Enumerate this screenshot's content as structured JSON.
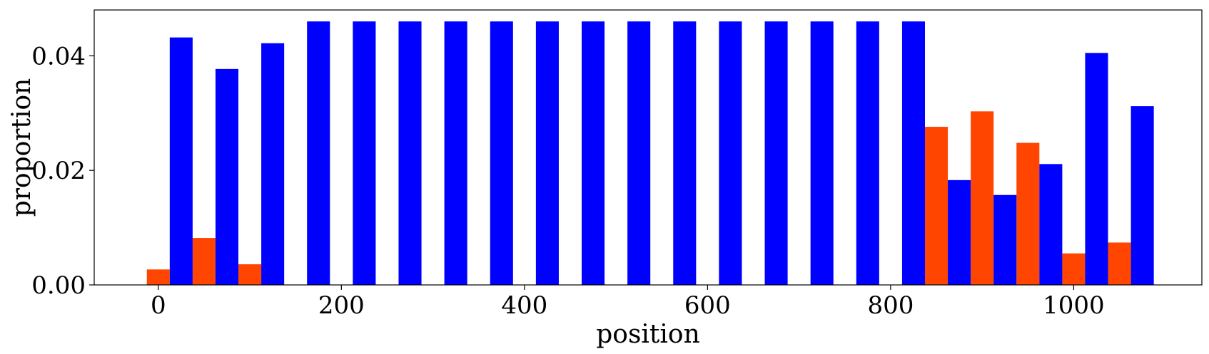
{
  "chart_data": {
    "type": "bar",
    "xlabel": "position",
    "ylabel": "proportion",
    "xlim": [
      -70,
      1140
    ],
    "ylim": [
      0,
      0.048
    ],
    "grid": false,
    "x": [
      0,
      50,
      100,
      150,
      200,
      250,
      300,
      350,
      400,
      450,
      500,
      550,
      600,
      650,
      700,
      750,
      800,
      850,
      900,
      950,
      1000,
      1050
    ],
    "bar_width": 25,
    "series": [
      {
        "color": "#ff4500",
        "offset": 0,
        "values": [
          0.0027,
          0.0082,
          0.0036,
          0,
          0,
          0,
          0,
          0,
          0,
          0,
          0,
          0,
          0,
          0,
          0,
          0,
          0,
          0.0276,
          0.0303,
          0.0248,
          0.0055,
          0.0074
        ]
      },
      {
        "color": "#0000ff",
        "offset": 25,
        "values": [
          0.0432,
          0.0377,
          0.0422,
          0.046,
          0.046,
          0.046,
          0.046,
          0.046,
          0.046,
          0.046,
          0.046,
          0.046,
          0.046,
          0.046,
          0.046,
          0.046,
          0.046,
          0.0183,
          0.0157,
          0.0211,
          0.0405,
          0.0312
        ]
      }
    ],
    "xticks": [
      {
        "value": 0,
        "label": "0"
      },
      {
        "value": 200,
        "label": "200"
      },
      {
        "value": 400,
        "label": "400"
      },
      {
        "value": 600,
        "label": "600"
      },
      {
        "value": 800,
        "label": "800"
      },
      {
        "value": 1000,
        "label": "1000"
      }
    ],
    "yticks": [
      {
        "value": 0,
        "label": "0.00"
      },
      {
        "value": 0.02,
        "label": "0.02"
      },
      {
        "value": 0.04,
        "label": "0.04"
      }
    ]
  }
}
